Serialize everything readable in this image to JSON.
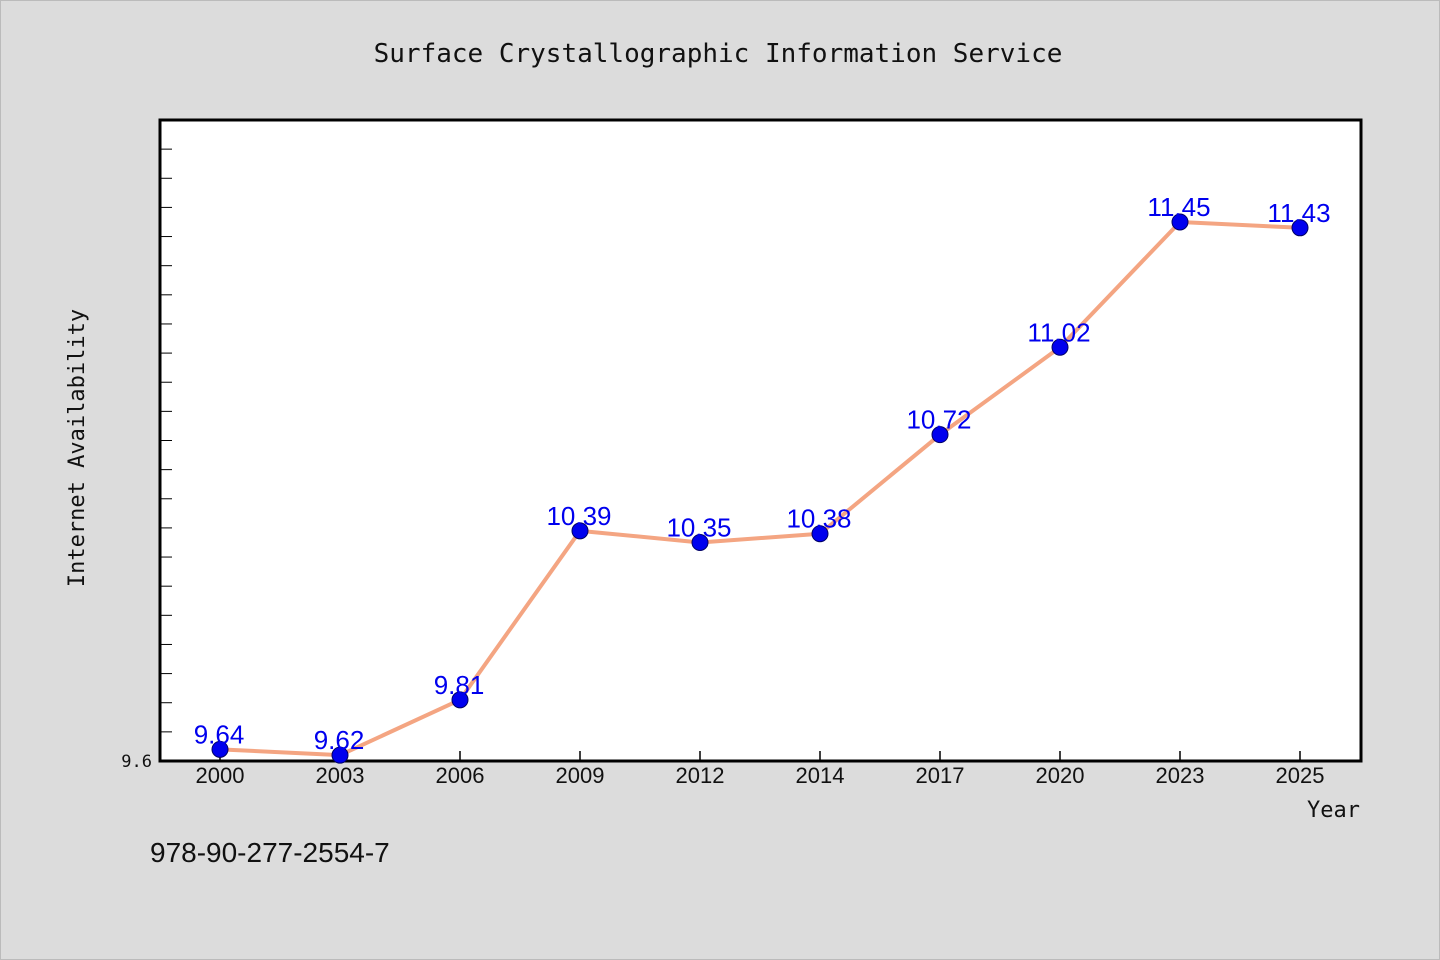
{
  "chart_data": {
    "type": "line",
    "title": "Surface Crystallographic Information Service",
    "xlabel": "Year",
    "ylabel": "Internet Availability",
    "categories": [
      "2000",
      "2003",
      "2006",
      "2009",
      "2012",
      "2014",
      "2017",
      "2020",
      "2023",
      "2025"
    ],
    "series": [
      {
        "values": [
          9.64,
          9.62,
          9.81,
          10.39,
          10.35,
          10.38,
          10.72,
          11.02,
          11.45,
          11.43
        ],
        "labels": [
          "9.64",
          "9.62",
          "9.81",
          "10.39",
          "10.35",
          "10.38",
          "10.72",
          "11.02",
          "11.45",
          "11.43"
        ],
        "line_color": "#f4a582",
        "marker_color": "#0000ee",
        "label_color": "#0000ee"
      }
    ],
    "yticks": [
      "9.6"
    ],
    "ylim": [
      9.6,
      11.8
    ],
    "grid": false,
    "legend": "none"
  },
  "footnote": "978-90-277-2554-7"
}
